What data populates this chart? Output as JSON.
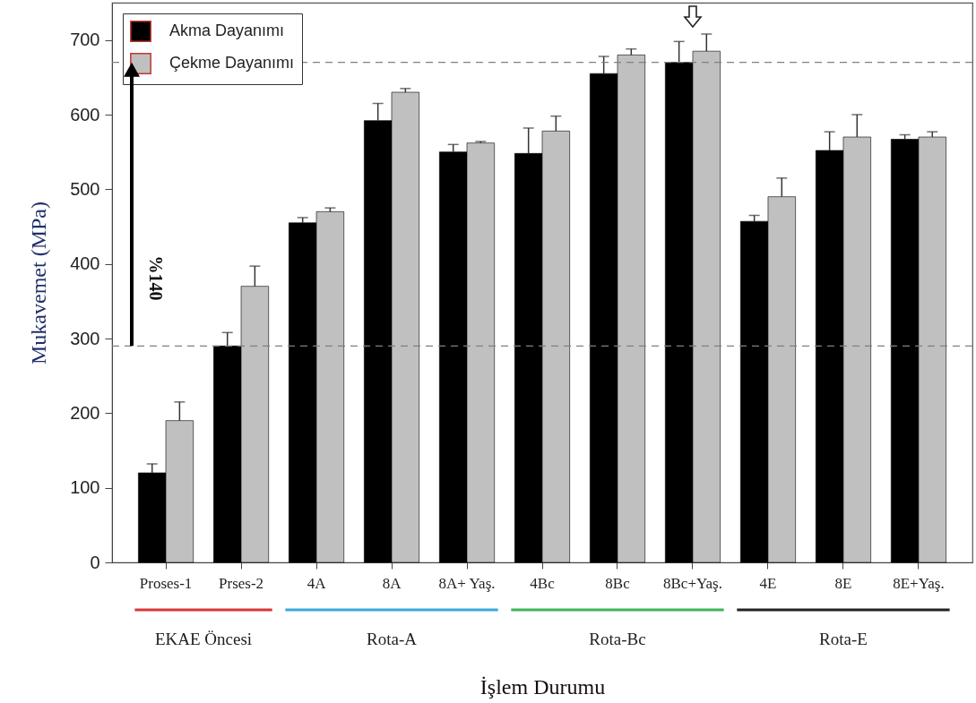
{
  "chart_data": {
    "type": "bar",
    "xlabel": "İşlem Durumu",
    "ylabel": "Mukavemet (MPa)",
    "categories": [
      "Proses-1",
      "Prses-2",
      "4A",
      "8A",
      "8A+ Yaş.",
      "4Bc",
      "8Bc",
      "8Bc+Yaş.",
      "4E",
      "8E",
      "8E+Yaş."
    ],
    "series": [
      {
        "name": "Akma Dayanımı",
        "color": "#000000",
        "values": [
          120,
          290,
          455,
          592,
          550,
          548,
          655,
          670,
          457,
          552,
          567
        ],
        "errors": [
          12,
          18,
          7,
          23,
          10,
          34,
          23,
          28,
          8,
          25,
          6
        ]
      },
      {
        "name": "Çekme Dayanımı",
        "color": "#c0c0c0",
        "values": [
          190,
          370,
          470,
          630,
          562,
          578,
          680,
          685,
          490,
          570,
          570
        ],
        "errors": [
          25,
          27,
          5,
          5,
          2,
          20,
          8,
          23,
          25,
          30,
          7
        ]
      }
    ],
    "ylim": [
      0,
      750
    ],
    "yticks": [
      0,
      100,
      200,
      300,
      400,
      500,
      600,
      700
    ],
    "grid": false,
    "legend": "top left",
    "ref_lines": [
      {
        "axis": "y",
        "value": 670,
        "line_style": "dashed",
        "color": "#808080"
      },
      {
        "axis": "y",
        "value": 290,
        "line_style": "dashed",
        "color": "#808080"
      }
    ],
    "annotations": [
      "%140",
      "EKAE Öncesi",
      "Rota-A",
      "Rota-Bc",
      "Rota-E"
    ]
  }
}
